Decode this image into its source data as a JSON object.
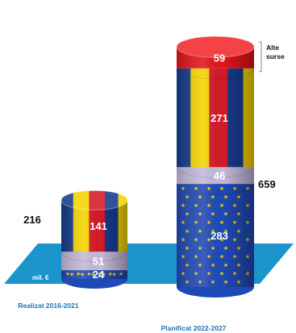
{
  "chart_data": {
    "type": "bar",
    "stacked": true,
    "style": "3d-cylinder",
    "unit": "mil. €",
    "categories": [
      "Realizat 2016-2021",
      "Planificat 2022-2027"
    ],
    "totals": [
      216,
      659
    ],
    "series": [
      {
        "key": "eu",
        "values": [
          24,
          283
        ]
      },
      {
        "key": "national",
        "values": [
          51,
          46
        ]
      },
      {
        "key": "ro",
        "values": [
          141,
          271
        ]
      },
      {
        "key": "other",
        "name": "Alte surse",
        "values": [
          null,
          59
        ]
      }
    ],
    "colors": {
      "eu": "#1f49b6",
      "eu_star": "#f5d800",
      "national": "#c4b9d9",
      "ro_blue": "#163b8c",
      "ro_yellow": "#f5d400",
      "ro_red": "#d21b28",
      "other": "#e2141c",
      "floor": "#1c95cc",
      "category_text": "#1a73b8"
    },
    "annotation": {
      "text": [
        "Alte",
        "surse"
      ]
    }
  }
}
